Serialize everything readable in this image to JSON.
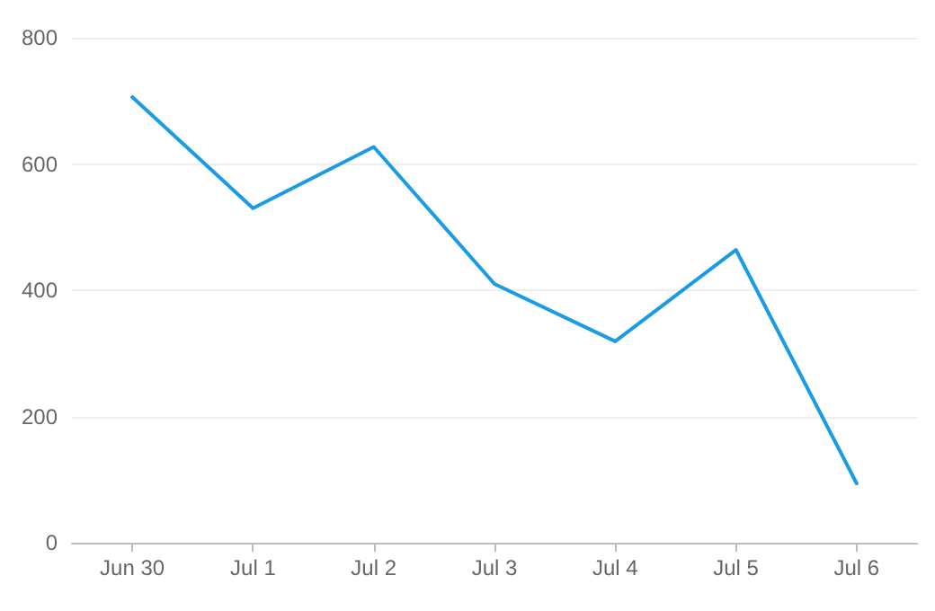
{
  "chart_data": {
    "type": "line",
    "categories": [
      "Jun 30",
      "Jul 1",
      "Jul 2",
      "Jul 3",
      "Jul 4",
      "Jul 5",
      "Jul 6"
    ],
    "series": [
      {
        "color": "#1a9be6",
        "values": [
          706,
          530,
          627,
          410,
          319,
          464,
          94
        ]
      }
    ],
    "ylim": [
      0,
      800
    ],
    "yticks": [
      0,
      200,
      400,
      600,
      800
    ],
    "grid": "y",
    "marker": "none",
    "line_style": "solid"
  }
}
